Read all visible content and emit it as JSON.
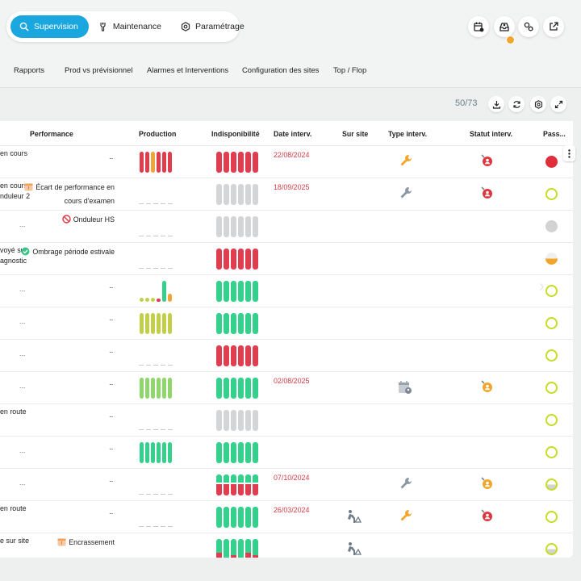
{
  "modes": [
    {
      "label": "Supervision",
      "icon": "search-icon",
      "active": true
    },
    {
      "label": "Maintenance",
      "icon": "wrench-icon",
      "active": false
    },
    {
      "label": "Paramétrage",
      "icon": "gear-icon",
      "active": false
    }
  ],
  "toolbar_icons": [
    "calendar-icon",
    "inbox-icon",
    "settings-pair-icon",
    "external-link-icon"
  ],
  "subnav": [
    "Rapports",
    "Prod vs prévisionnel",
    "Alarmes et Interventions",
    "Configuration des sites",
    "Top / Flop"
  ],
  "table": {
    "count": "50/73",
    "actions": [
      "download-icon",
      "refresh-icon",
      "settings-icon",
      "expand-icon"
    ],
    "columns": {
      "performance": "Performance",
      "production": "Production",
      "indisponibilite": "Indisponibilité",
      "date": "Date interv.",
      "sursite": "Sur site",
      "type": "Type interv.",
      "statut": "Statut interv.",
      "pass": "Pass..."
    },
    "colors": {
      "red": "#e03d4e",
      "orange": "#f0a53a",
      "yellowgreen": "#c3cf4a",
      "green": "#33d18b",
      "grey": "#d3d5d7",
      "pass_green": "#c7dd1f",
      "pass_red": "#e02f3c",
      "pass_grey": "#d3d3d3"
    },
    "rows": [
      {
        "status": [
          "en cours"
        ],
        "perf_dots": true,
        "perf_text": [],
        "perf_icon": "",
        "prod": {
          "kind": "bars",
          "colors": [
            "red",
            "red",
            "orange",
            "red",
            "red",
            "red"
          ],
          "levels": [
            1,
            1,
            1,
            1,
            1,
            1
          ]
        },
        "indispo": [
          "r",
          "r",
          "r",
          "r",
          "r",
          "r"
        ],
        "date": "22/08/2024",
        "sursite": "",
        "type": "wrench-orange",
        "statut": "person-red",
        "pass": "red"
      },
      {
        "status": [
          "en cours",
          "nduleur 2"
        ],
        "perf_dots": false,
        "perf_text": [
          "Écart de performance en",
          "cours d'examen"
        ],
        "perf_icon": "calendar-alert-icon",
        "prod": {
          "kind": "dash"
        },
        "indispo": [
          "g",
          "g",
          "g",
          "g",
          "g",
          "g"
        ],
        "date": "18/09/2025",
        "sursite": "",
        "type": "wrench-grey",
        "statut": "person-red",
        "pass": "green"
      },
      {
        "status": [
          "..."
        ],
        "perf_dots": false,
        "perf_text": [
          "Onduleur HS"
        ],
        "perf_icon": "forbidden-icon",
        "prod": {
          "kind": "dash"
        },
        "indispo": [
          "g",
          "g",
          "g",
          "g",
          "g",
          "g"
        ],
        "date": "",
        "sursite": "",
        "type": "",
        "statut": "",
        "pass": "grey"
      },
      {
        "status": [
          "voyé sur",
          "agnostic"
        ],
        "perf_dots": false,
        "perf_text": [
          "Ombrage période estivale"
        ],
        "perf_icon": "check-circle-icon",
        "prod": {
          "kind": "dash"
        },
        "indispo": [
          "r",
          "r",
          "r",
          "r",
          "r",
          "r"
        ],
        "date": "",
        "sursite": "",
        "type": "",
        "statut": "",
        "pass": "half-orange"
      },
      {
        "status": [
          "..."
        ],
        "perf_dots": true,
        "perf_text": [],
        "perf_icon": "",
        "prod": {
          "kind": "bars",
          "colors": [
            "yellowgreen",
            "yellowgreen",
            "yellowgreen",
            "red",
            "green",
            "orange"
          ],
          "levels": [
            0.18,
            0.18,
            0.2,
            0.12,
            1,
            0.4
          ]
        },
        "indispo": [
          "G",
          "G",
          "G",
          "G",
          "G",
          "G"
        ],
        "date": "",
        "sursite": "",
        "type": "",
        "statut": "",
        "pass": "green"
      },
      {
        "status": [
          "..."
        ],
        "perf_dots": true,
        "perf_text": [],
        "perf_icon": "",
        "prod": {
          "kind": "bars",
          "colors": [
            "yellowgreen",
            "yellowgreen",
            "yellowgreen",
            "yellowgreen",
            "yellowgreen",
            "yellowgreen"
          ],
          "levels": [
            1,
            1,
            1,
            1,
            1,
            1
          ]
        },
        "indispo": [
          "G",
          "G",
          "G",
          "G",
          "G",
          "G"
        ],
        "date": "",
        "sursite": "",
        "type": "",
        "statut": "",
        "pass": "green"
      },
      {
        "status": [
          "..."
        ],
        "perf_dots": true,
        "perf_text": [],
        "perf_icon": "",
        "prod": {
          "kind": "dash"
        },
        "indispo": [
          "r",
          "r",
          "r",
          "r",
          "r",
          "r"
        ],
        "date": "",
        "sursite": "",
        "type": "",
        "statut": "",
        "pass": "green"
      },
      {
        "status": [
          "..."
        ],
        "perf_dots": true,
        "perf_text": [],
        "perf_icon": "",
        "prod": {
          "kind": "bars",
          "colors": [
            "lightgreen",
            "lightgreen",
            "lightgreen",
            "lightgreen",
            "lightgreen",
            "lightgreen"
          ],
          "levels": [
            1,
            1,
            1,
            1,
            1,
            1
          ]
        },
        "indispo": [
          "G",
          "G",
          "G",
          "G",
          "G",
          "G"
        ],
        "date": "02/08/2025",
        "sursite": "",
        "type": "calendar-person",
        "statut": "person-orange",
        "pass": "green"
      },
      {
        "status": [
          "en route"
        ],
        "perf_dots": true,
        "perf_text": [],
        "perf_icon": "",
        "prod": {
          "kind": "dash"
        },
        "indispo": [
          "g",
          "g",
          "g",
          "g",
          "g",
          "g"
        ],
        "date": "",
        "sursite": "",
        "type": "",
        "statut": "",
        "pass": "green"
      },
      {
        "status": [
          "..."
        ],
        "perf_dots": true,
        "perf_text": [],
        "perf_icon": "",
        "prod": {
          "kind": "bars",
          "colors": [
            "green",
            "green",
            "green",
            "green",
            "green",
            "green"
          ],
          "levels": [
            1,
            1,
            1,
            1,
            1,
            1
          ]
        },
        "indispo": [
          "G",
          "G",
          "G",
          "G",
          "G",
          "G"
        ],
        "date": "",
        "sursite": "",
        "type": "",
        "statut": "",
        "pass": "green"
      },
      {
        "status": [
          "..."
        ],
        "perf_dots": true,
        "perf_text": [],
        "perf_icon": "",
        "prod": {
          "kind": "dash"
        },
        "indispo": [
          "Gr",
          "Gr",
          "Gr",
          "Gr",
          "Gr",
          "Gr"
        ],
        "date": "07/10/2024",
        "sursite": "",
        "type": "wrench-grey",
        "statut": "person-orange",
        "pass": "half-grey"
      },
      {
        "status": [
          "en route"
        ],
        "perf_dots": true,
        "perf_text": [],
        "perf_icon": "",
        "prod": {
          "kind": "dash"
        },
        "indispo": [
          "G",
          "G",
          "G",
          "G",
          "G",
          "G"
        ],
        "date": "26/03/2024",
        "sursite": "worker-icon",
        "type": "wrench-orange",
        "statut": "person-red",
        "pass": "green"
      },
      {
        "status": [
          "e sur site"
        ],
        "perf_dots": false,
        "perf_text": [
          "Encrassement"
        ],
        "perf_icon": "calendar-alert-icon",
        "prod": {
          "kind": "none"
        },
        "indispo": [
          "Gmix1",
          "G",
          "Gmix2",
          "G",
          "Gmix1",
          "Gmix2"
        ],
        "date": "",
        "sursite": "worker-icon",
        "type": "",
        "statut": "",
        "pass": "half-grey"
      }
    ]
  }
}
